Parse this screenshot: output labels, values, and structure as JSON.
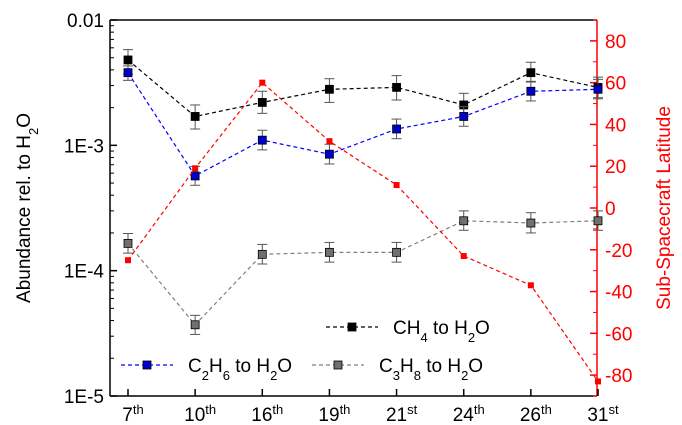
{
  "chart_data": {
    "type": "line",
    "categories": [
      "7th",
      "10th",
      "16th",
      "19th",
      "21st",
      "24th",
      "26th",
      "31st"
    ],
    "categories_display": [
      {
        "base": "7",
        "sup": "th"
      },
      {
        "base": "10",
        "sup": "th"
      },
      {
        "base": "16",
        "sup": "th"
      },
      {
        "base": "19",
        "sup": "th"
      },
      {
        "base": "21",
        "sup": "st"
      },
      {
        "base": "24",
        "sup": "th"
      },
      {
        "base": "26",
        "sup": "th"
      },
      {
        "base": "31",
        "sup": "st"
      }
    ],
    "left_axis": {
      "scale": "log",
      "ylim": [
        1e-05,
        0.01
      ],
      "ticks": [
        {
          "value": 0.01,
          "label": "0.01"
        },
        {
          "value": 0.001,
          "label": "1E-3"
        },
        {
          "value": 0.0001,
          "label": "1E-4"
        },
        {
          "value": 1e-05,
          "label": "1E-5"
        }
      ],
      "label_parts": [
        {
          "t": "Abundance rel. to H"
        },
        {
          "t": "2",
          "sub": true
        },
        {
          "t": "O"
        }
      ],
      "color": "#000000"
    },
    "right_axis": {
      "scale": "linear",
      "ylim": [
        -90,
        90
      ],
      "ticks": [
        80,
        60,
        40,
        20,
        0,
        -20,
        -40,
        -60,
        -80
      ],
      "label": "Sub-Spacecraft Latitude",
      "color": "#ff0000"
    },
    "series": [
      {
        "axis": "left",
        "color": "#000000",
        "marker_color": "#000000",
        "values": [
          0.0048,
          0.0017,
          0.0022,
          0.0028,
          0.0029,
          0.0021,
          0.0038,
          0.0029
        ],
        "err_low": [
          0.0037,
          0.00135,
          0.0018,
          0.0022,
          0.0023,
          0.0017,
          0.0032,
          0.0024
        ],
        "err_high": [
          0.0058,
          0.0021,
          0.0027,
          0.0034,
          0.0036,
          0.0026,
          0.0046,
          0.0035
        ],
        "legend": [
          {
            "t": "CH"
          },
          {
            "t": "4",
            "sub": true
          },
          {
            "t": " to H"
          },
          {
            "t": "2",
            "sub": true
          },
          {
            "t": "O"
          }
        ]
      },
      {
        "axis": "left",
        "color": "#0000ff",
        "marker_color": "#0000cc",
        "values": [
          0.0038,
          0.00057,
          0.0011,
          0.00085,
          0.00135,
          0.0017,
          0.0027,
          0.0028
        ],
        "err_low": [
          0.0033,
          0.00048,
          0.00092,
          0.00071,
          0.00113,
          0.00142,
          0.00226,
          0.00235
        ],
        "err_high": [
          0.0043,
          0.00068,
          0.00132,
          0.00102,
          0.00162,
          0.00204,
          0.00324,
          0.00336
        ],
        "legend": [
          {
            "t": "C"
          },
          {
            "t": "2",
            "sub": true
          },
          {
            "t": "H"
          },
          {
            "t": "6",
            "sub": true
          },
          {
            "t": " to H"
          },
          {
            "t": "2",
            "sub": true
          },
          {
            "t": "O"
          }
        ]
      },
      {
        "axis": "left",
        "color": "#808080",
        "marker_color": "#707070",
        "values": [
          0.000165,
          3.7e-05,
          0.000135,
          0.00014,
          0.00014,
          0.00025,
          0.00024,
          0.00025
        ],
        "err_low": [
          0.000138,
          3.1e-05,
          0.000113,
          0.000117,
          0.000117,
          0.00021,
          0.0002,
          0.00021
        ],
        "err_high": [
          0.000198,
          4.4e-05,
          0.000162,
          0.000168,
          0.000168,
          0.0003,
          0.00029,
          0.0003
        ],
        "legend": [
          {
            "t": "C"
          },
          {
            "t": "3",
            "sub": true
          },
          {
            "t": "H"
          },
          {
            "t": "8",
            "sub": true
          },
          {
            "t": " to H"
          },
          {
            "t": "2",
            "sub": true
          },
          {
            "t": "O"
          }
        ]
      },
      {
        "axis": "right",
        "color": "#ff0000",
        "marker_color": "#ff0000",
        "values": [
          -25,
          19,
          60,
          32,
          11,
          -23,
          -37,
          -83
        ]
      }
    ],
    "legend_placement": "bottom-center",
    "grid": false
  }
}
